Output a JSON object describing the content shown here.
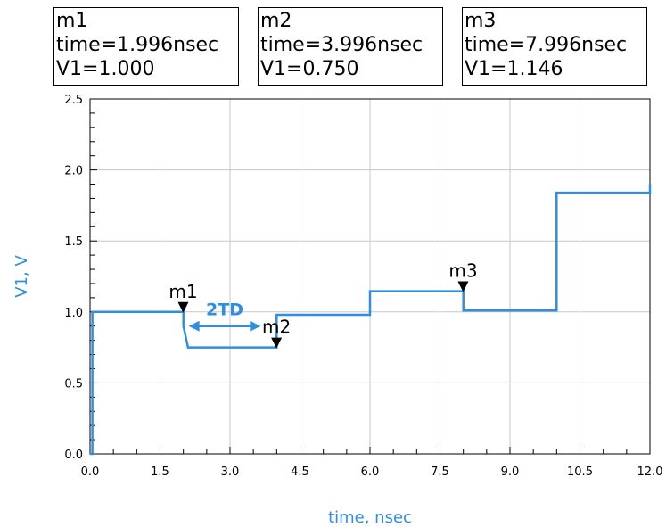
{
  "markers": [
    {
      "name": "m1",
      "time": 1.996,
      "value": 1.0,
      "lines": [
        "m1",
        "time=1.996nsec",
        "V1=1.000"
      ]
    },
    {
      "name": "m2",
      "time": 3.996,
      "value": 0.75,
      "lines": [
        "m2",
        "time=3.996nsec",
        "V1=0.750"
      ]
    },
    {
      "name": "m3",
      "time": 7.996,
      "value": 1.146,
      "lines": [
        "m3",
        "time=7.996nsec",
        "V1=1.146"
      ]
    }
  ],
  "annotation": {
    "text": "2TD",
    "from_x": 2.0,
    "to_x": 4.0,
    "y": 0.9
  },
  "colors": {
    "trace": "#2f8ee0",
    "grid": "#c8c8c8",
    "axis_title": "#2f8ee0"
  },
  "chart_data": {
    "type": "line",
    "xlabel": "time, nsec",
    "ylabel": "V1, V",
    "xlim": [
      0,
      12
    ],
    "ylim": [
      0,
      2.5
    ],
    "xticks": [
      0,
      1.5,
      3,
      4.5,
      6,
      7.5,
      9,
      10.5,
      12
    ],
    "xtick_labels": [
      "0.0",
      "1.5",
      "3.0",
      "4.5",
      "6.0",
      "7.5",
      "9.0",
      "10.5",
      "12.0"
    ],
    "yticks": [
      0,
      0.5,
      1,
      1.5,
      2,
      2.5
    ],
    "ytick_labels": [
      "0.0",
      "0.5",
      "1.0",
      "1.5",
      "2.0",
      "2.5"
    ],
    "grid": true,
    "series": [
      {
        "x": [
          0,
          0.05,
          0.05,
          2.0,
          2.0,
          2.1,
          4.0,
          4.0,
          6.0,
          6.0,
          8.0,
          8.0,
          10.0,
          10.0,
          12.0,
          12.0
        ],
        "y": [
          0,
          0,
          1.0,
          1.0,
          0.9,
          0.75,
          0.75,
          0.98,
          0.98,
          1.146,
          1.146,
          1.01,
          1.01,
          1.84,
          1.84,
          1.9
        ]
      }
    ]
  }
}
